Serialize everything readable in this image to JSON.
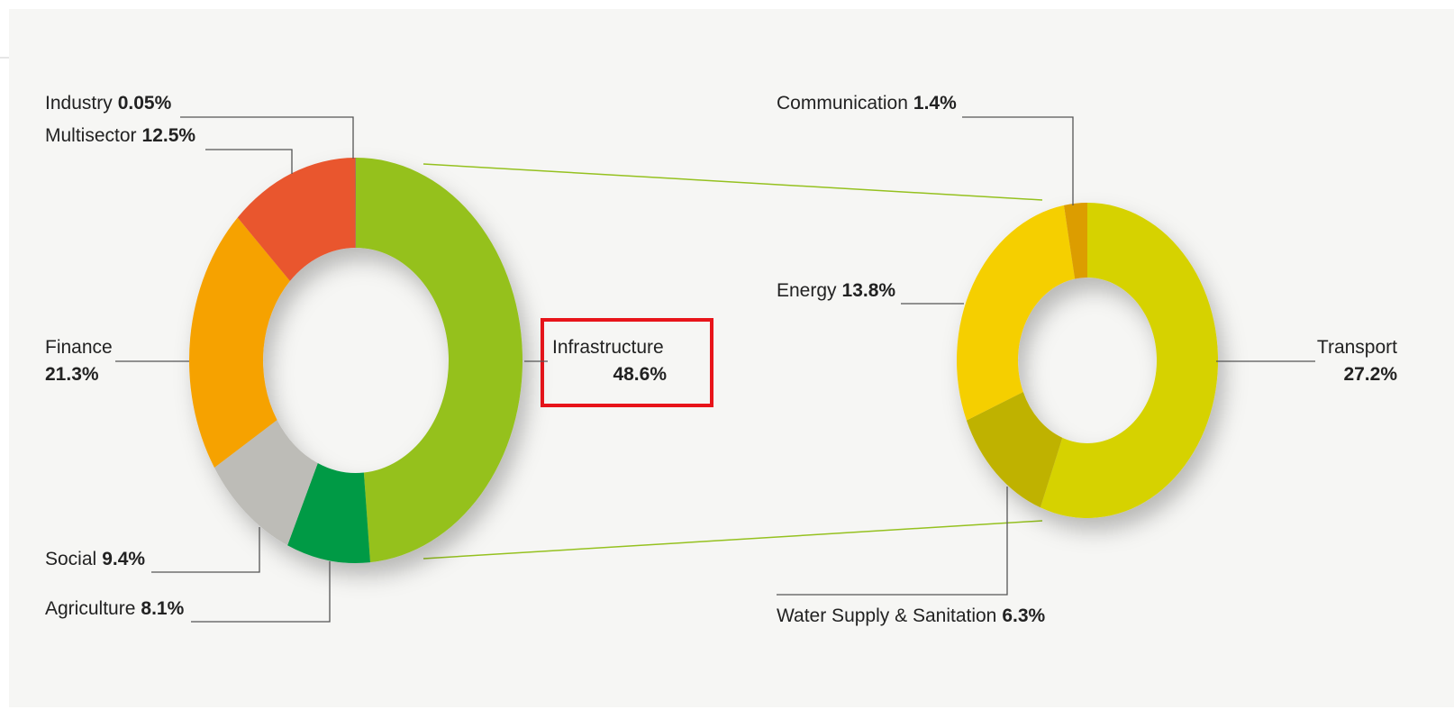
{
  "chart_data": [
    {
      "type": "donut",
      "categories": [
        "Infrastructure",
        "Agriculture",
        "Social",
        "Finance",
        "Multisector",
        "Industry"
      ],
      "values": [
        48.6,
        8.1,
        9.4,
        21.3,
        12.5,
        0.05
      ],
      "value_labels": [
        "48.6%",
        "8.1%",
        "9.4%",
        "21.3%",
        "12.5%",
        "0.05%"
      ],
      "colors": [
        "#95c11f",
        "#009a44",
        "#bdbcb7",
        "#f6a200",
        "#e9562f",
        "#7a7a72"
      ]
    },
    {
      "type": "donut",
      "categories": [
        "Transport",
        "Water Supply & Sanitation",
        "Energy",
        "Communication"
      ],
      "values": [
        27.2,
        6.3,
        13.8,
        1.4
      ],
      "value_labels": [
        "27.2%",
        "6.3%",
        "13.8%",
        "1.4%"
      ],
      "colors": [
        "#d6d200",
        "#bfb200",
        "#f5cf00",
        "#dc9d00"
      ]
    }
  ]
}
